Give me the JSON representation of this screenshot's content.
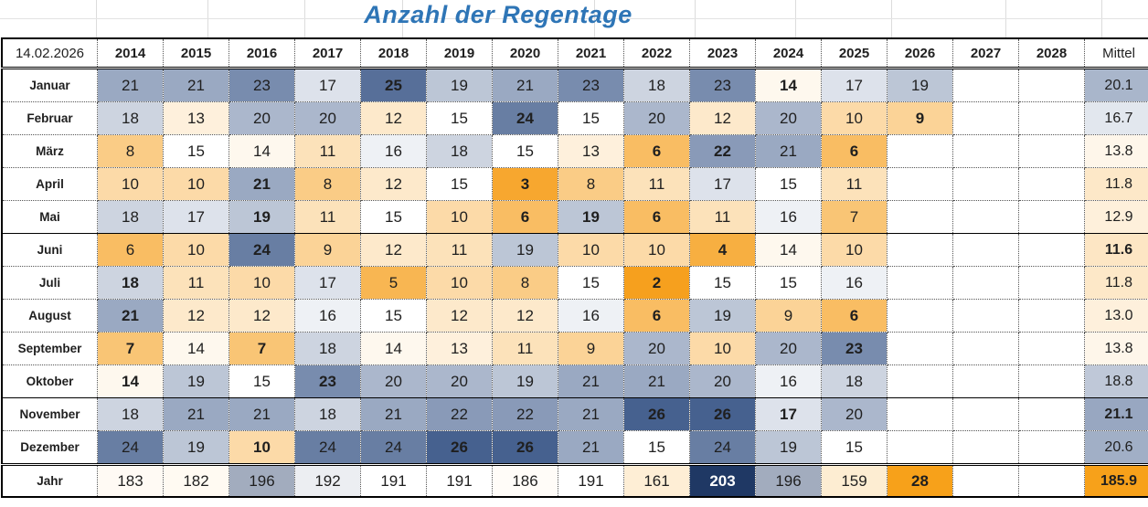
{
  "title": "Anzahl der Regentage",
  "date_label": "14.02.2026",
  "years": [
    "2014",
    "2015",
    "2016",
    "2017",
    "2018",
    "2019",
    "2020",
    "2021",
    "2022",
    "2023",
    "2024",
    "2025",
    "2026",
    "2027",
    "2028"
  ],
  "mittel_label": "Mittel",
  "jahr_label": "Jahr",
  "chart_data": {
    "type": "heatmap",
    "title": "Anzahl der Regentage",
    "x_categories": [
      "2014",
      "2015",
      "2016",
      "2017",
      "2018",
      "2019",
      "2020",
      "2021",
      "2022",
      "2023",
      "2024",
      "2025",
      "2026",
      "2027",
      "2028"
    ],
    "y_categories": [
      "Januar",
      "Februar",
      "März",
      "April",
      "Mai",
      "Juni",
      "Juli",
      "August",
      "September",
      "Oktober",
      "November",
      "Dezember"
    ],
    "rows": [
      {
        "label": "Januar",
        "values": [
          21,
          21,
          23,
          17,
          25,
          19,
          21,
          23,
          18,
          23,
          14,
          17,
          19,
          null,
          null
        ],
        "mittel": "20.1"
      },
      {
        "label": "Februar",
        "values": [
          18,
          13,
          20,
          20,
          12,
          15,
          24,
          15,
          20,
          12,
          20,
          10,
          9,
          null,
          null
        ],
        "mittel": "16.7"
      },
      {
        "label": "März",
        "values": [
          8,
          15,
          14,
          11,
          16,
          18,
          15,
          13,
          6,
          22,
          21,
          6,
          null,
          null,
          null
        ],
        "mittel": "13.8"
      },
      {
        "label": "April",
        "values": [
          10,
          10,
          21,
          8,
          12,
          15,
          3,
          8,
          11,
          17,
          15,
          11,
          null,
          null,
          null
        ],
        "mittel": "11.8"
      },
      {
        "label": "Mai",
        "values": [
          18,
          17,
          19,
          11,
          15,
          10,
          6,
          19,
          6,
          11,
          16,
          7,
          null,
          null,
          null
        ],
        "mittel": "12.9"
      },
      {
        "label": "Juni",
        "values": [
          6,
          10,
          24,
          9,
          12,
          11,
          19,
          10,
          10,
          4,
          14,
          10,
          null,
          null,
          null
        ],
        "mittel": "11.6"
      },
      {
        "label": "Juli",
        "values": [
          18,
          11,
          10,
          17,
          5,
          10,
          8,
          15,
          2,
          15,
          15,
          16,
          null,
          null,
          null
        ],
        "mittel": "11.8"
      },
      {
        "label": "August",
        "values": [
          21,
          12,
          12,
          16,
          15,
          12,
          12,
          16,
          6,
          19,
          9,
          6,
          null,
          null,
          null
        ],
        "mittel": "13.0"
      },
      {
        "label": "September",
        "values": [
          7,
          14,
          7,
          18,
          14,
          13,
          11,
          9,
          20,
          10,
          20,
          23,
          null,
          null,
          null
        ],
        "mittel": "13.8"
      },
      {
        "label": "Oktober",
        "values": [
          14,
          19,
          15,
          23,
          20,
          20,
          19,
          21,
          21,
          20,
          16,
          18,
          null,
          null,
          null
        ],
        "mittel": "18.8"
      },
      {
        "label": "November",
        "values": [
          18,
          21,
          21,
          18,
          21,
          22,
          22,
          21,
          26,
          26,
          17,
          20,
          null,
          null,
          null
        ],
        "mittel": "21.1"
      },
      {
        "label": "Dezember",
        "values": [
          24,
          19,
          10,
          24,
          24,
          26,
          26,
          21,
          15,
          24,
          19,
          15,
          null,
          null,
          null
        ],
        "mittel": "20.6"
      }
    ],
    "jahr_row": {
      "label": "Jahr",
      "values": [
        183,
        182,
        196,
        192,
        191,
        191,
        186,
        191,
        161,
        203,
        196,
        159,
        28,
        null,
        null
      ],
      "mittel": "185.9"
    },
    "color_scales": {
      "months": {
        "domain": [
          2,
          15,
          26
        ],
        "colors": [
          "#F6A01E",
          "#FFFFFF",
          "#46618F"
        ]
      },
      "mittel": {
        "domain": [
          2,
          15,
          26
        ],
        "colors": [
          "#F6A01E",
          "#FFFFFF",
          "#46618F"
        ]
      },
      "jahr": {
        "domain": [
          28,
          191,
          203
        ],
        "colors": [
          "#F7A11A",
          "#FFFFFF",
          "#1F3864"
        ]
      },
      "jahr_mittel_fill": "#F7A11A"
    },
    "bold_rule": "row minimum and maximum values are bold"
  },
  "colors": {
    "title": "#2E75B6",
    "outer_border": "#000000",
    "dotted_grid": "#555555",
    "sheet_gridline": "#DCDCDC"
  }
}
